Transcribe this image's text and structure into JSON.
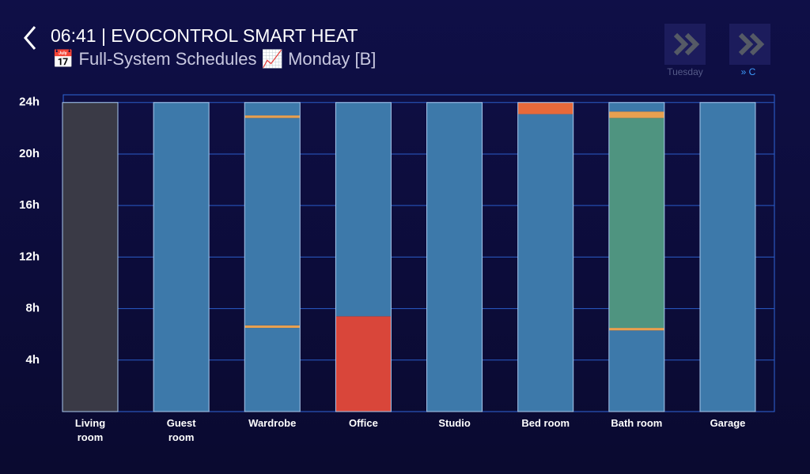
{
  "header": {
    "title": "06:41 | EVOCONTROL SMART HEAT",
    "subtitle": "📅 Full-System Schedules 📈 Monday [B]"
  },
  "buttons": [
    {
      "label": "Tuesday"
    },
    {
      "label": "» C"
    }
  ],
  "chart_data": {
    "type": "bar",
    "ylim": [
      0,
      24.6
    ],
    "yticks": [
      {
        "value": 4,
        "label": "4h"
      },
      {
        "value": 8,
        "label": "8h"
      },
      {
        "value": 12,
        "label": "12h"
      },
      {
        "value": 16,
        "label": "16h"
      },
      {
        "value": 20,
        "label": "20h"
      },
      {
        "value": 24,
        "label": "24h"
      }
    ],
    "grid": true,
    "rooms": [
      {
        "name": "Living room",
        "segments": [
          {
            "from": 0,
            "to": 24,
            "color": "#3a3a46"
          }
        ]
      },
      {
        "name": "Guest room",
        "segments": [
          {
            "from": 0,
            "to": 24,
            "color": "#3d79aa"
          }
        ]
      },
      {
        "name": "Wardrobe",
        "segments": [
          {
            "from": 0,
            "to": 6.5,
            "color": "#3d79aa"
          },
          {
            "from": 6.5,
            "to": 6.7,
            "color": "#e8a050"
          },
          {
            "from": 6.7,
            "to": 22.8,
            "color": "#3d79aa"
          },
          {
            "from": 22.8,
            "to": 23.0,
            "color": "#e8a050"
          },
          {
            "from": 23.0,
            "to": 24,
            "color": "#3d79aa"
          }
        ]
      },
      {
        "name": "Office",
        "segments": [
          {
            "from": 0,
            "to": 7.4,
            "color": "#d9463a"
          },
          {
            "from": 7.4,
            "to": 24,
            "color": "#3d79aa"
          }
        ]
      },
      {
        "name": "Studio",
        "segments": [
          {
            "from": 0,
            "to": 24,
            "color": "#3d79aa"
          }
        ]
      },
      {
        "name": "Bed room",
        "segments": [
          {
            "from": 0,
            "to": 23.1,
            "color": "#3d79aa"
          },
          {
            "from": 23.1,
            "to": 24,
            "color": "#e8693a"
          }
        ]
      },
      {
        "name": "Bath room",
        "segments": [
          {
            "from": 0,
            "to": 6.3,
            "color": "#3d79aa"
          },
          {
            "from": 6.3,
            "to": 6.5,
            "color": "#e8a050"
          },
          {
            "from": 6.5,
            "to": 22.8,
            "color": "#4f9480"
          },
          {
            "from": 22.8,
            "to": 23.3,
            "color": "#e8a050"
          },
          {
            "from": 23.3,
            "to": 24,
            "color": "#3d79aa"
          }
        ]
      },
      {
        "name": "Garage",
        "segments": [
          {
            "from": 0,
            "to": 24,
            "color": "#3d79aa"
          }
        ]
      }
    ]
  }
}
